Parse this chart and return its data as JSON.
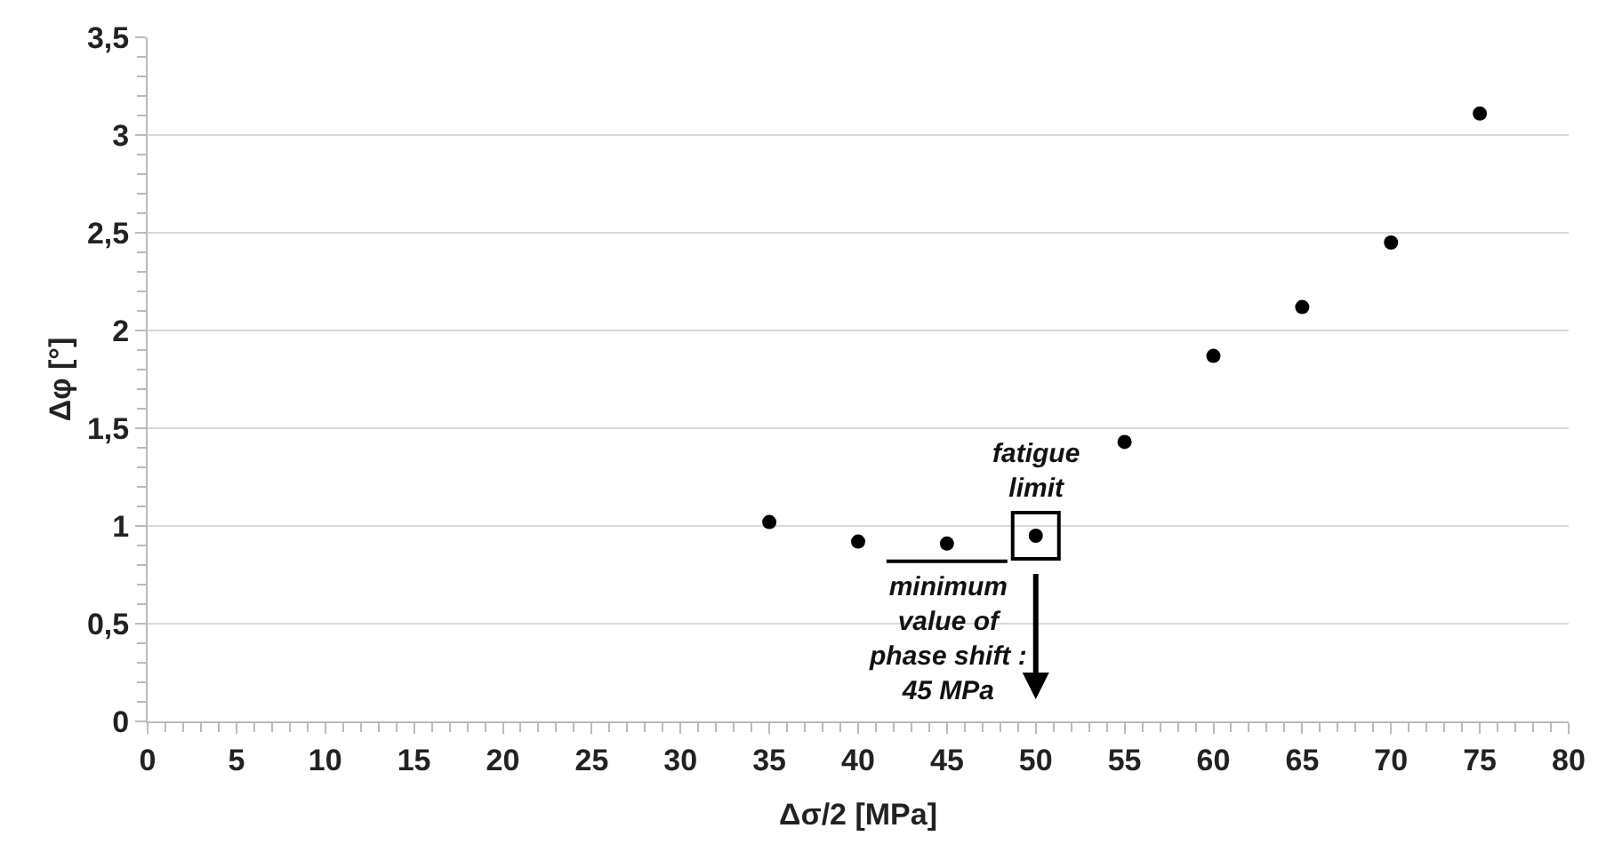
{
  "chart_data": {
    "type": "scatter",
    "xlabel": "Δσ/2 [MPa]",
    "ylabel": "Δφ [°]",
    "x": [
      35,
      40,
      45,
      50,
      55,
      60,
      65,
      70,
      75
    ],
    "series": [
      {
        "color": "#000000",
        "values": [
          1.02,
          0.92,
          0.91,
          0.95,
          1.43,
          1.87,
          2.12,
          2.45,
          3.11
        ]
      }
    ],
    "xlim": [
      0,
      80
    ],
    "xticks": [
      0,
      5,
      10,
      15,
      20,
      25,
      30,
      35,
      40,
      45,
      50,
      55,
      60,
      65,
      70,
      75,
      80
    ],
    "ylim": [
      0,
      3.5
    ],
    "yticks": [
      0,
      {
        "value": 0.5,
        "label": "0,5"
      },
      1,
      {
        "value": 1.5,
        "label": "1,5"
      },
      2,
      {
        "value": 2.5,
        "label": "2,5"
      },
      3,
      {
        "value": 3.5,
        "label": "3,5"
      }
    ],
    "grid": "y",
    "marker": "circle",
    "annotations": [
      {
        "text": "fatigue\nlimit",
        "x": 50,
        "y": 0.95
      },
      {
        "text": "minimum\nvalue of\nphase shift :\n45 MPa",
        "x": 45,
        "y": 0.91
      }
    ]
  }
}
